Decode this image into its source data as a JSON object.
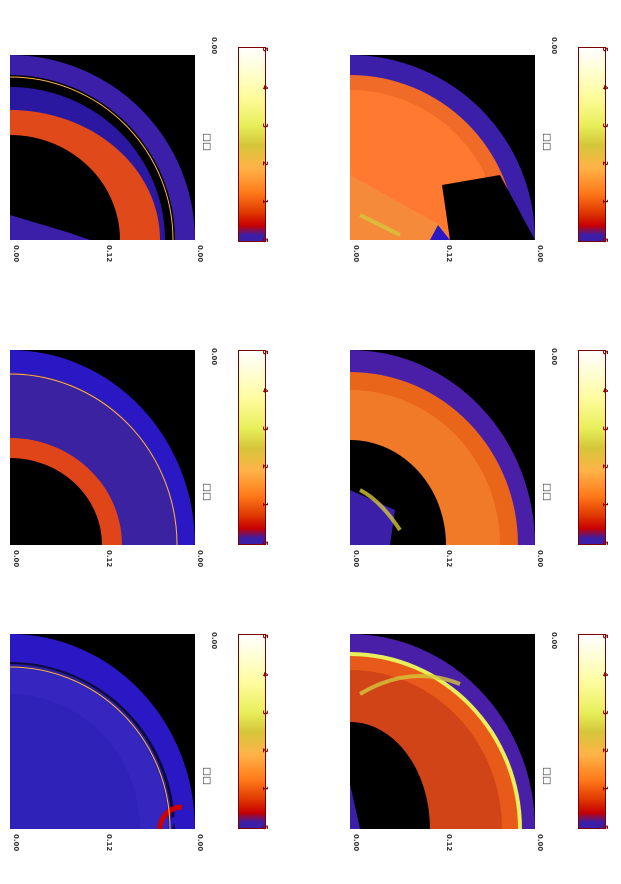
{
  "colorbar_stops": [
    "#3b1fa8",
    "#3b1fa8",
    "#c80000",
    "#e03a00",
    "#ff7a1a",
    "#ffb347",
    "#d4c73a",
    "#e8ef5b",
    "#fffc9e",
    "#ffffff"
  ],
  "panels": [
    {
      "id": "p1",
      "axis_ticks": [
        "0.00",
        "0.12",
        "0.00"
      ],
      "corner_tick": "0.00",
      "colorbar_ticks": [
        "-5",
        "1",
        "2",
        "3",
        "4",
        "5"
      ],
      "inner_fill": "#2a18c4",
      "inner_rx": 0.0,
      "band_color": "#c83a18"
    },
    {
      "id": "p2",
      "axis_ticks": [
        "0.00",
        "0.12",
        "0.00"
      ],
      "corner_tick": "0.00",
      "colorbar_ticks": [
        "-5",
        "1",
        "2",
        "3",
        "4",
        "5"
      ],
      "inner_fill": "#e85a1a",
      "inner_rx": 0.55,
      "band_color": "#4a1fa8"
    },
    {
      "id": "p3",
      "axis_ticks": [
        "0.00",
        "0.12",
        "0.00"
      ],
      "corner_tick": "0.00",
      "colorbar_ticks": [
        "-5",
        "1",
        "2",
        "3",
        "4",
        "5"
      ],
      "inner_fill": "#000000",
      "inner_rx": 0.45,
      "band_color": "#e84a18"
    },
    {
      "id": "p4",
      "axis_ticks": [
        "0.00",
        "0.12",
        "0.00"
      ],
      "corner_tick": "0.00",
      "colorbar_ticks": [
        "-5",
        "1",
        "2",
        "3",
        "4",
        "5"
      ],
      "inner_fill": "#000000",
      "inner_rx": 0.52,
      "band_color": "#e85a1a"
    },
    {
      "id": "p5",
      "axis_ticks": [
        "0.00",
        "0.12",
        "0.00"
      ],
      "corner_tick": "0.00",
      "colorbar_ticks": [
        "-5",
        "1",
        "2",
        "3",
        "4",
        "5"
      ],
      "inner_fill": "#000000",
      "inner_rx": 0.45,
      "band_color": "#ff8c3a"
    },
    {
      "id": "p6",
      "axis_ticks": [
        "0.00",
        "0.12",
        "0.00"
      ],
      "corner_tick": "0.00",
      "colorbar_ticks": [
        "-5",
        "1",
        "2",
        "3",
        "4",
        "5"
      ],
      "inner_fill": "#000000",
      "inner_rx": 0.42,
      "band_color": "#ff6a2a"
    }
  ]
}
